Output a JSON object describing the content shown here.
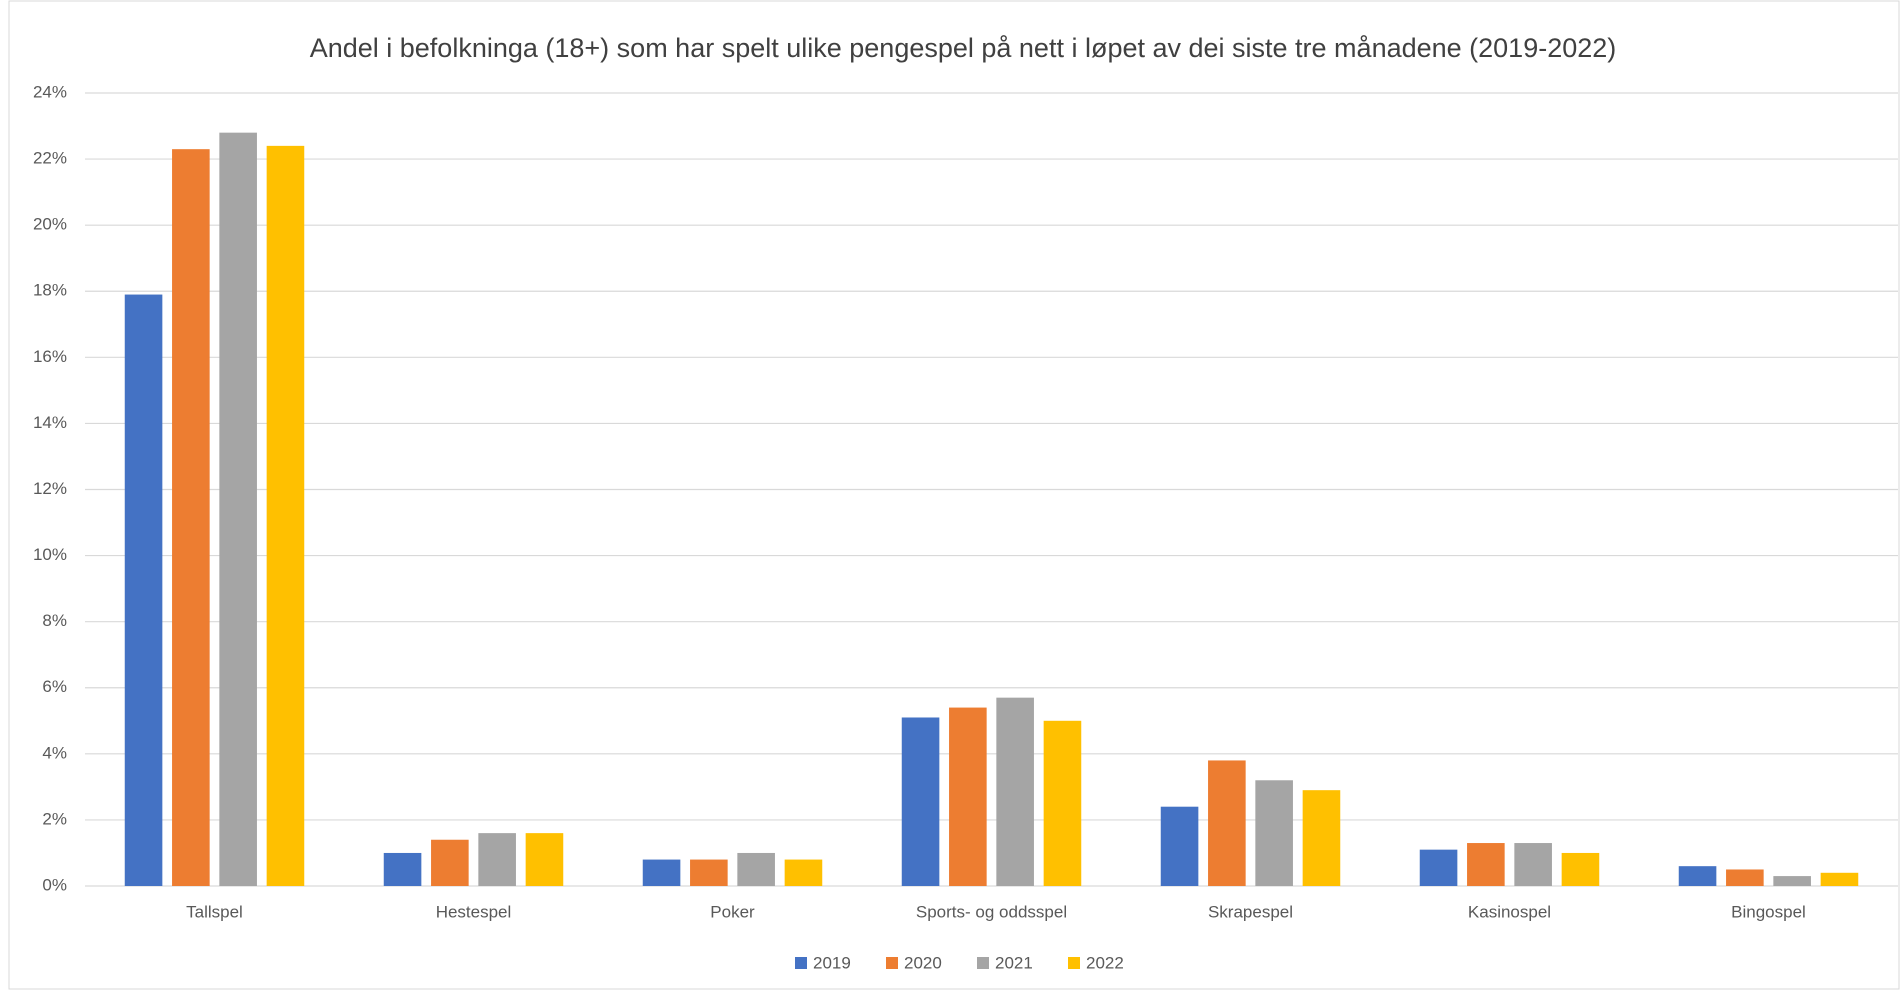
{
  "chart_data": {
    "type": "bar",
    "title": "Andel i befolkninga (18+) som har spelt ulike pengespel på nett i løpet av dei siste tre månadene (2019-2022)",
    "categories": [
      "Tallspel",
      "Hestespel",
      "Poker",
      "Sports- og oddsspel",
      "Skrapespel",
      "Kasinospel",
      "Bingospel"
    ],
    "series": [
      {
        "name": "2019",
        "color": "#4472c4",
        "values": [
          17.9,
          1.0,
          0.8,
          5.1,
          2.4,
          1.1,
          0.6
        ]
      },
      {
        "name": "2020",
        "color": "#ed7d31",
        "values": [
          22.3,
          1.4,
          0.8,
          5.4,
          3.8,
          1.3,
          0.5
        ]
      },
      {
        "name": "2021",
        "color": "#a5a5a5",
        "values": [
          22.8,
          1.6,
          1.0,
          5.7,
          3.2,
          1.3,
          0.3
        ]
      },
      {
        "name": "2022",
        "color": "#ffc000",
        "values": [
          22.4,
          1.6,
          0.8,
          5.0,
          2.9,
          1.0,
          0.4
        ]
      }
    ],
    "ylim": [
      0,
      24
    ],
    "yticks": [
      {
        "value": 0,
        "label": "0%"
      },
      {
        "value": 2,
        "label": "2%"
      },
      {
        "value": 4,
        "label": "4%"
      },
      {
        "value": 6,
        "label": "6%"
      },
      {
        "value": 8,
        "label": "8%"
      },
      {
        "value": 10,
        "label": "10%"
      },
      {
        "value": 12,
        "label": "12%"
      },
      {
        "value": 14,
        "label": "14%"
      },
      {
        "value": 16,
        "label": "16%"
      },
      {
        "value": 18,
        "label": "18%"
      },
      {
        "value": 20,
        "label": "20%"
      },
      {
        "value": 22,
        "label": "22%"
      },
      {
        "value": 24,
        "label": "24%"
      }
    ],
    "grid": true,
    "legend": "bottom"
  }
}
